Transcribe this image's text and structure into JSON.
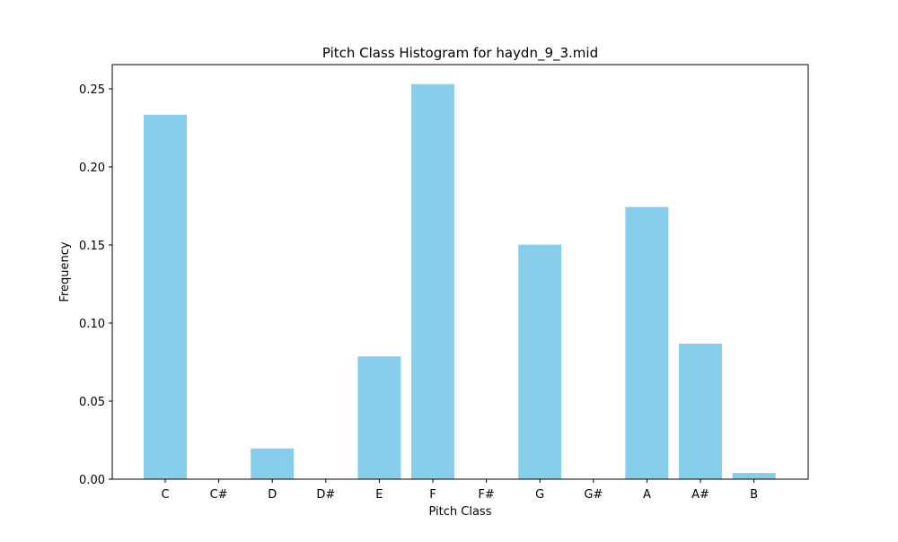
{
  "chart_data": {
    "type": "bar",
    "title": "Pitch Class Histogram for haydn_9_3.mid",
    "xlabel": "Pitch Class",
    "ylabel": "Frequency",
    "categories": [
      "C",
      "C#",
      "D",
      "D#",
      "E",
      "F",
      "F#",
      "G",
      "G#",
      "A",
      "A#",
      "B"
    ],
    "values": [
      0.2334,
      0.0,
      0.0197,
      0.0,
      0.0786,
      0.253,
      0.0,
      0.1502,
      0.0,
      0.1743,
      0.0868,
      0.004
    ],
    "ylim": [
      0,
      0.2655
    ],
    "yticks": [
      0.0,
      0.05,
      0.1,
      0.15,
      0.2,
      0.25
    ],
    "ytick_labels": [
      "0.00",
      "0.05",
      "0.10",
      "0.15",
      "0.20",
      "0.25"
    ],
    "bar_color": "#87ceeb",
    "grid": false,
    "legend": "none"
  }
}
